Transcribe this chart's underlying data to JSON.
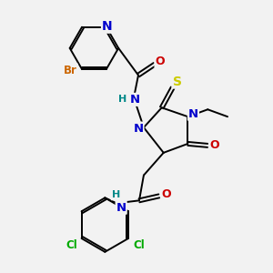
{
  "bg_color": "#f2f2f2",
  "bond_color": "#000000",
  "atom_colors": {
    "N": "#0000cc",
    "O": "#cc0000",
    "S": "#cccc00",
    "Br": "#cc6600",
    "Cl": "#00aa00",
    "H": "#008888",
    "C": "#000000"
  },
  "font_size": 8.5,
  "fig_size": [
    3.0,
    3.0
  ],
  "dpi": 100
}
